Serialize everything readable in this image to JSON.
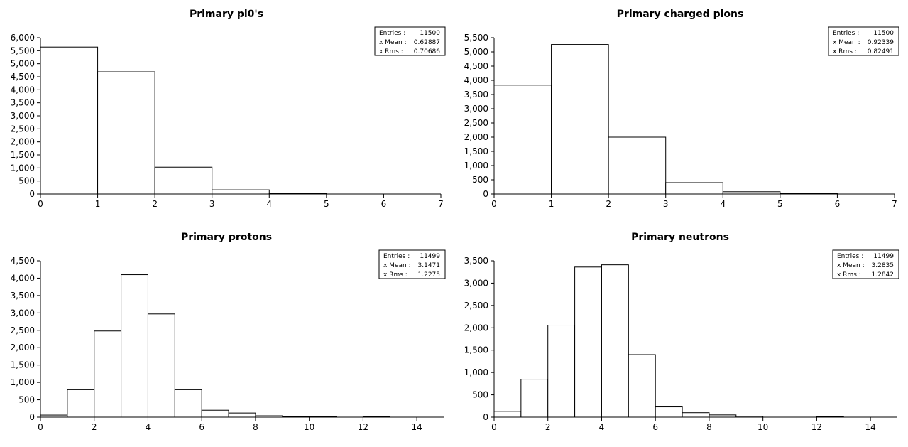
{
  "chart_data": [
    {
      "type": "bar",
      "title": "Primary pi0's",
      "xlabel": "",
      "ylabel": "",
      "xlim": [
        0,
        7
      ],
      "ylim": [
        0,
        6000
      ],
      "xticks": [
        0,
        1,
        2,
        3,
        4,
        5,
        6,
        7
      ],
      "yticks": [
        0,
        500,
        1000,
        1500,
        2000,
        2500,
        3000,
        3500,
        4000,
        4500,
        5000,
        5500,
        6000
      ],
      "xtick_labels": [
        "0",
        "1",
        "2",
        "3",
        "4",
        "5",
        "6",
        "7"
      ],
      "ytick_labels": [
        "0",
        "500",
        "1,000",
        "1,500",
        "2,000",
        "2,500",
        "3,000",
        "3,500",
        "4,000",
        "4,500",
        "5,000",
        "5,500",
        "6,000"
      ],
      "bins": [
        [
          0,
          1
        ],
        [
          1,
          2
        ],
        [
          2,
          3
        ],
        [
          3,
          4
        ],
        [
          4,
          5
        ]
      ],
      "values": [
        5640,
        4690,
        1030,
        160,
        20
      ],
      "stats": [
        {
          "label": "Entries :",
          "value": "11500"
        },
        {
          "label": "x Mean :",
          "value": "0.62887"
        },
        {
          "label": "x Rms :",
          "value": "0.70686"
        }
      ],
      "legend_position": "top-right",
      "grid": false
    },
    {
      "type": "bar",
      "title": "Primary charged pions",
      "xlabel": "",
      "ylabel": "",
      "xlim": [
        0,
        7
      ],
      "ylim": [
        0,
        5500
      ],
      "xticks": [
        0,
        1,
        2,
        3,
        4,
        5,
        6,
        7
      ],
      "yticks": [
        0,
        500,
        1000,
        1500,
        2000,
        2500,
        3000,
        3500,
        4000,
        4500,
        5000,
        5500
      ],
      "xtick_labels": [
        "0",
        "1",
        "2",
        "3",
        "4",
        "5",
        "6",
        "7"
      ],
      "ytick_labels": [
        "0",
        "500",
        "1,000",
        "1,500",
        "2,000",
        "2,500",
        "3,000",
        "3,500",
        "4,000",
        "4,500",
        "5,000",
        "5,500"
      ],
      "bins": [
        [
          0,
          1
        ],
        [
          1,
          2
        ],
        [
          2,
          3
        ],
        [
          3,
          4
        ],
        [
          4,
          5
        ],
        [
          5,
          6
        ]
      ],
      "values": [
        3830,
        5260,
        2000,
        400,
        80,
        20
      ],
      "stats": [
        {
          "label": "Entries :",
          "value": "11500"
        },
        {
          "label": "x Mean :",
          "value": "0.92339"
        },
        {
          "label": "x Rms :",
          "value": "0.82491"
        }
      ],
      "legend_position": "top-right",
      "grid": false
    },
    {
      "type": "bar",
      "title": "Primary protons",
      "xlabel": "",
      "ylabel": "",
      "xlim": [
        0,
        15
      ],
      "ylim": [
        0,
        4500
      ],
      "xticks": [
        0,
        2,
        4,
        6,
        8,
        10,
        12,
        14
      ],
      "yticks": [
        0,
        500,
        1000,
        1500,
        2000,
        2500,
        3000,
        3500,
        4000,
        4500
      ],
      "xtick_labels": [
        "0",
        "2",
        "4",
        "6",
        "8",
        "10",
        "12",
        "14"
      ],
      "ytick_labels": [
        "0",
        "500",
        "1,000",
        "1,500",
        "2,000",
        "2,500",
        "3,000",
        "3,500",
        "4,000",
        "4,500"
      ],
      "bins": [
        [
          0,
          1
        ],
        [
          1,
          2
        ],
        [
          2,
          3
        ],
        [
          3,
          4
        ],
        [
          4,
          5
        ],
        [
          5,
          6
        ],
        [
          6,
          7
        ],
        [
          7,
          8
        ],
        [
          8,
          9
        ],
        [
          9,
          10
        ],
        [
          10,
          11
        ],
        [
          12,
          13
        ]
      ],
      "values": [
        60,
        790,
        2480,
        4100,
        2970,
        790,
        200,
        120,
        40,
        20,
        10,
        10
      ],
      "stats": [
        {
          "label": "Entries :",
          "value": "11499"
        },
        {
          "label": "x Mean :",
          "value": "3.1471"
        },
        {
          "label": "x Rms :",
          "value": "1.2275"
        }
      ],
      "legend_position": "top-right",
      "grid": false
    },
    {
      "type": "bar",
      "title": "Primary neutrons",
      "xlabel": "",
      "ylabel": "",
      "xlim": [
        0,
        15
      ],
      "ylim": [
        0,
        3500
      ],
      "xticks": [
        0,
        2,
        4,
        6,
        8,
        10,
        12,
        14
      ],
      "yticks": [
        0,
        500,
        1000,
        1500,
        2000,
        2500,
        3000,
        3500
      ],
      "xtick_labels": [
        "0",
        "2",
        "4",
        "6",
        "8",
        "10",
        "12",
        "14"
      ],
      "ytick_labels": [
        "0",
        "500",
        "1,000",
        "1,500",
        "2,000",
        "2,500",
        "3,000",
        "3,500"
      ],
      "bins": [
        [
          0,
          1
        ],
        [
          1,
          2
        ],
        [
          2,
          3
        ],
        [
          3,
          4
        ],
        [
          4,
          5
        ],
        [
          5,
          6
        ],
        [
          6,
          7
        ],
        [
          7,
          8
        ],
        [
          8,
          9
        ],
        [
          9,
          10
        ],
        [
          12,
          13
        ]
      ],
      "values": [
        130,
        850,
        2060,
        3360,
        3410,
        1400,
        230,
        100,
        50,
        20,
        10
      ],
      "stats": [
        {
          "label": "Entries :",
          "value": "11499"
        },
        {
          "label": "x Mean :",
          "value": "3.2835"
        },
        {
          "label": "x Rms :",
          "value": "1.2842"
        }
      ],
      "legend_position": "top-right",
      "grid": false
    }
  ]
}
